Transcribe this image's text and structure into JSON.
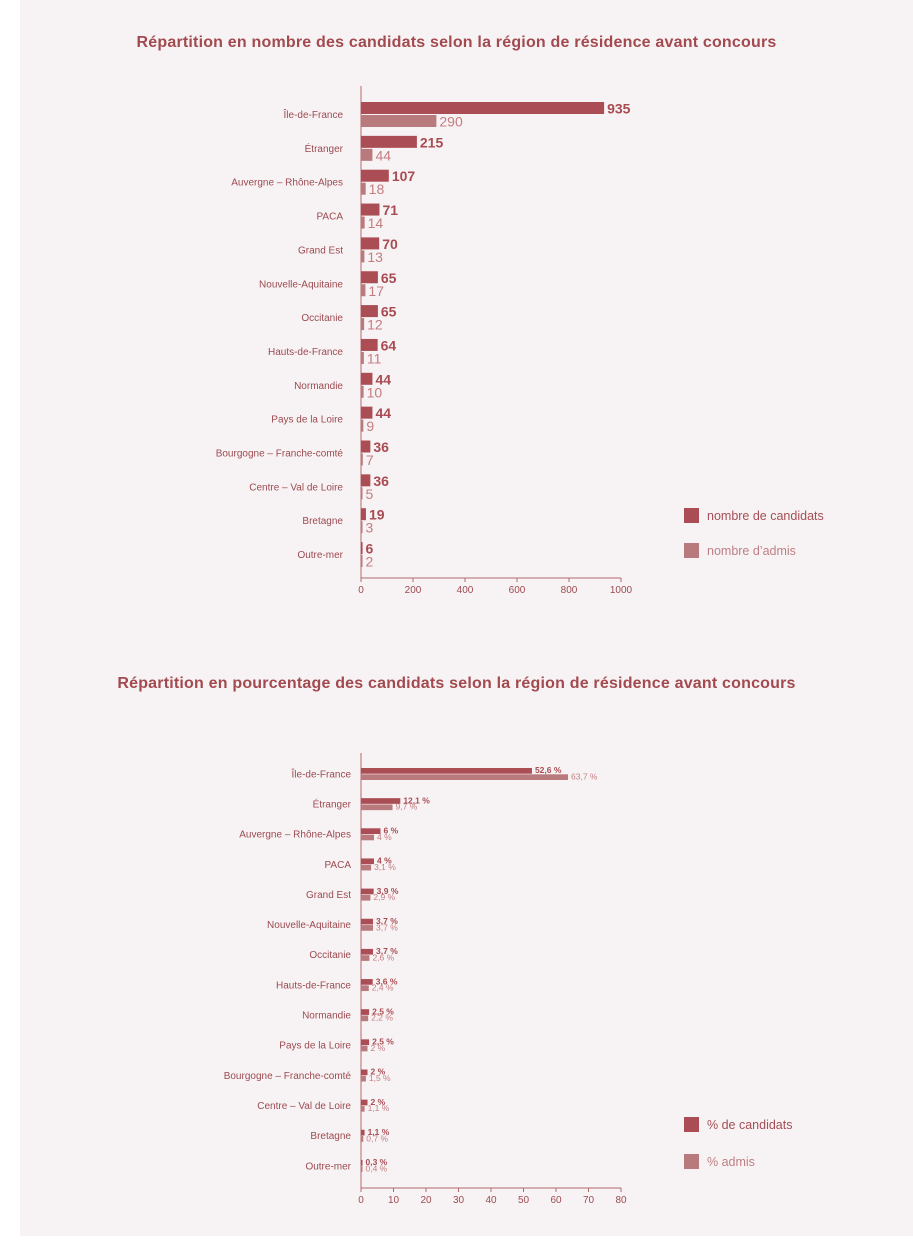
{
  "colors": {
    "candidats": "#ab4d54",
    "admis": "#b97a7d",
    "axis": "#b06a6e",
    "text": "#9c4a50"
  },
  "chart_data": [
    {
      "type": "bar",
      "orientation": "horizontal",
      "title": "Répartition en nombre des candidats selon la région de résidence avant concours",
      "categories": [
        "Île-de-France",
        "Étranger",
        "Auvergne – Rhône-Alpes",
        "PACA",
        "Grand Est",
        "Nouvelle-Aquitaine",
        "Occitanie",
        "Hauts-de-France",
        "Normandie",
        "Pays de la Loire",
        "Bourgogne –  Franche-comté",
        "Centre – Val de Loire",
        "Bretagne",
        "Outre-mer"
      ],
      "series": [
        {
          "name": "nombre de candidats",
          "values": [
            935,
            215,
            107,
            71,
            70,
            65,
            65,
            64,
            44,
            44,
            36,
            36,
            19,
            6
          ],
          "labels": [
            "935",
            "215",
            "107",
            "71",
            "70",
            "65",
            "65",
            "64",
            "44",
            "44",
            "36",
            "36",
            "19",
            "6"
          ]
        },
        {
          "name": "nombre d’admis",
          "values": [
            290,
            44,
            18,
            14,
            13,
            17,
            12,
            11,
            10,
            9,
            7,
            5,
            3,
            2
          ],
          "labels": [
            "290",
            "44",
            "18",
            "14",
            "13",
            "17",
            "12",
            "11",
            "10",
            "9",
            "7",
            "5",
            "3",
            "2"
          ]
        }
      ],
      "xlim": [
        0,
        1000
      ],
      "ticks": [
        0,
        200,
        400,
        600,
        800,
        1000
      ],
      "tick_labels": [
        "0",
        "200",
        "400",
        "600",
        "800",
        "1000"
      ],
      "legend_position": "right",
      "grid": false
    },
    {
      "type": "bar",
      "orientation": "horizontal",
      "title": "Répartition en pourcentage des candidats selon la région de résidence avant concours",
      "categories": [
        "Île-de-France",
        "Étranger",
        "Auvergne – Rhône-Alpes",
        "PACA",
        "Grand Est",
        "Nouvelle-Aquitaine",
        "Occitanie",
        "Hauts-de-France",
        "Normandie",
        "Pays de la Loire",
        "Bourgogne –  Franche-comté",
        "Centre – Val de Loire",
        "Bretagne",
        "Outre-mer"
      ],
      "series": [
        {
          "name": "% de candidats",
          "values": [
            52.6,
            12.1,
            6,
            4,
            3.9,
            3.7,
            3.7,
            3.6,
            2.5,
            2.5,
            2,
            2,
            1.1,
            0.3
          ],
          "labels": [
            "52,6 %",
            "12,1 %",
            "6 %",
            "4 %",
            "3,9 %",
            "3,7 %",
            "3,7 %",
            "3,6 %",
            "2,5 %",
            "2,5 %",
            "2 %",
            "2 %",
            "1,1 %",
            "0,3 %"
          ]
        },
        {
          "name": "% admis",
          "values": [
            63.7,
            9.7,
            4,
            3.1,
            2.9,
            3.7,
            2.6,
            2.4,
            2.2,
            2,
            1.5,
            1.1,
            0.7,
            0.4
          ],
          "labels": [
            "63,7 %",
            "9,7 %",
            "4 %",
            "3,1 %",
            "2,9 %",
            "3,7 %",
            "2,6 %",
            "2,4 %",
            "2,2 %",
            "2 %",
            "1,5 %",
            "1,1 %",
            "0,7 %",
            "0,4 %"
          ]
        }
      ],
      "xlim": [
        0,
        80
      ],
      "ticks": [
        0,
        10,
        20,
        30,
        40,
        50,
        60,
        70,
        80
      ],
      "tick_labels": [
        "0",
        "10",
        "20",
        "30",
        "40",
        "50",
        "60",
        "70",
        "80"
      ],
      "legend_position": "right",
      "grid": false
    }
  ]
}
